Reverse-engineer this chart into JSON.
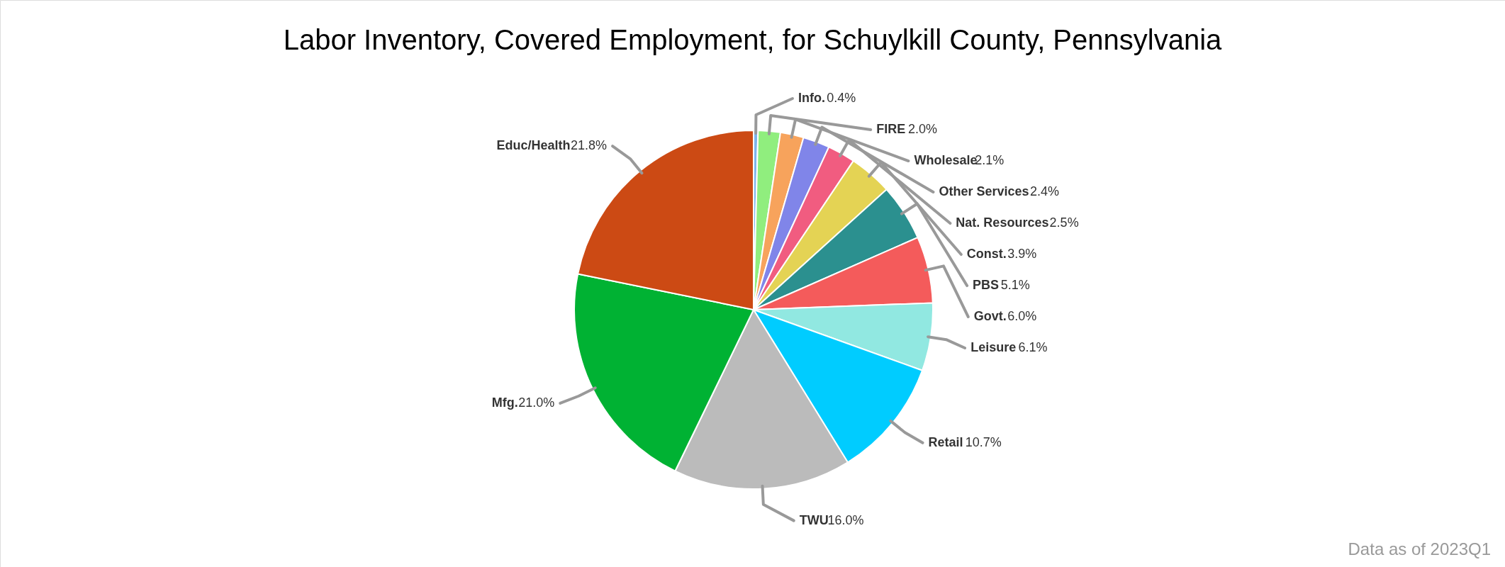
{
  "chart_data": {
    "type": "pie",
    "title": "Labor Inventory, Covered Employment, for Schuylkill County, Pennsylvania",
    "categories": [
      "Info.",
      "FIRE",
      "Wholesale",
      "Other Services",
      "Nat. Resources",
      "Const.",
      "PBS",
      "Govt.",
      "Leisure",
      "Retail",
      "TWU",
      "Mfg.",
      "Educ/Health"
    ],
    "values": [
      0.4,
      2.0,
      2.1,
      2.4,
      2.5,
      3.9,
      5.1,
      6.0,
      6.1,
      10.7,
      16.0,
      21.0,
      21.8
    ],
    "colors": [
      "#7cb5ec",
      "#90ee7e",
      "#f7a35c",
      "#8085e9",
      "#f15c80",
      "#e4d354",
      "#2b908f",
      "#f45b5b",
      "#91e8e1",
      "#00ccff",
      "#bbbbbb",
      "#00b233",
      "#cc4a14"
    ],
    "value_labels": [
      "0.4%",
      "2.0%",
      "2.1%",
      "2.4%",
      "2.5%",
      "3.9%",
      "5.1%",
      "6.0%",
      "6.1%",
      "10.7%",
      "16.0%",
      "21.0%",
      "21.8%"
    ],
    "annotations": [
      "Data as of 2023Q1"
    ]
  }
}
